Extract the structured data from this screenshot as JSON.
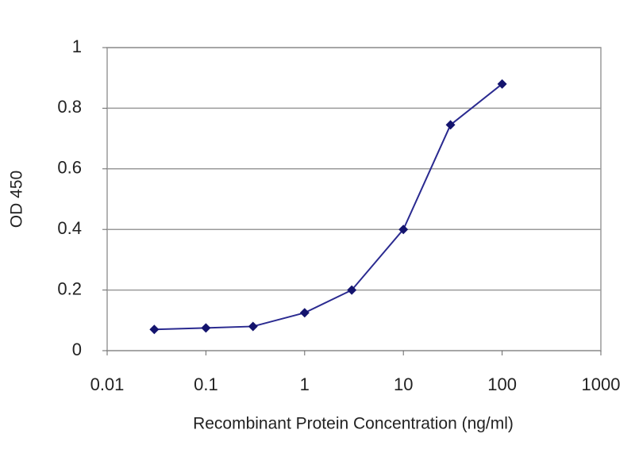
{
  "chart_data": {
    "type": "line",
    "x_label": "Recombinant Protein Concentration (ng/ml)",
    "y_label": "OD 450",
    "x": [
      0.03,
      0.1,
      0.3,
      1,
      3,
      10,
      30,
      100
    ],
    "values": [
      0.07,
      0.075,
      0.08,
      0.125,
      0.2,
      0.4,
      0.745,
      0.88
    ],
    "color": "#2a2a90",
    "marker_color": "#14146e",
    "xscale": "log",
    "xlim": [
      0.01,
      1000
    ],
    "xticks": [
      0.01,
      0.1,
      1,
      10,
      100,
      1000
    ],
    "ylim": [
      0,
      1
    ],
    "yticks": [
      0,
      0.2,
      0.4,
      0.6,
      0.8,
      1
    ],
    "grid": true
  }
}
